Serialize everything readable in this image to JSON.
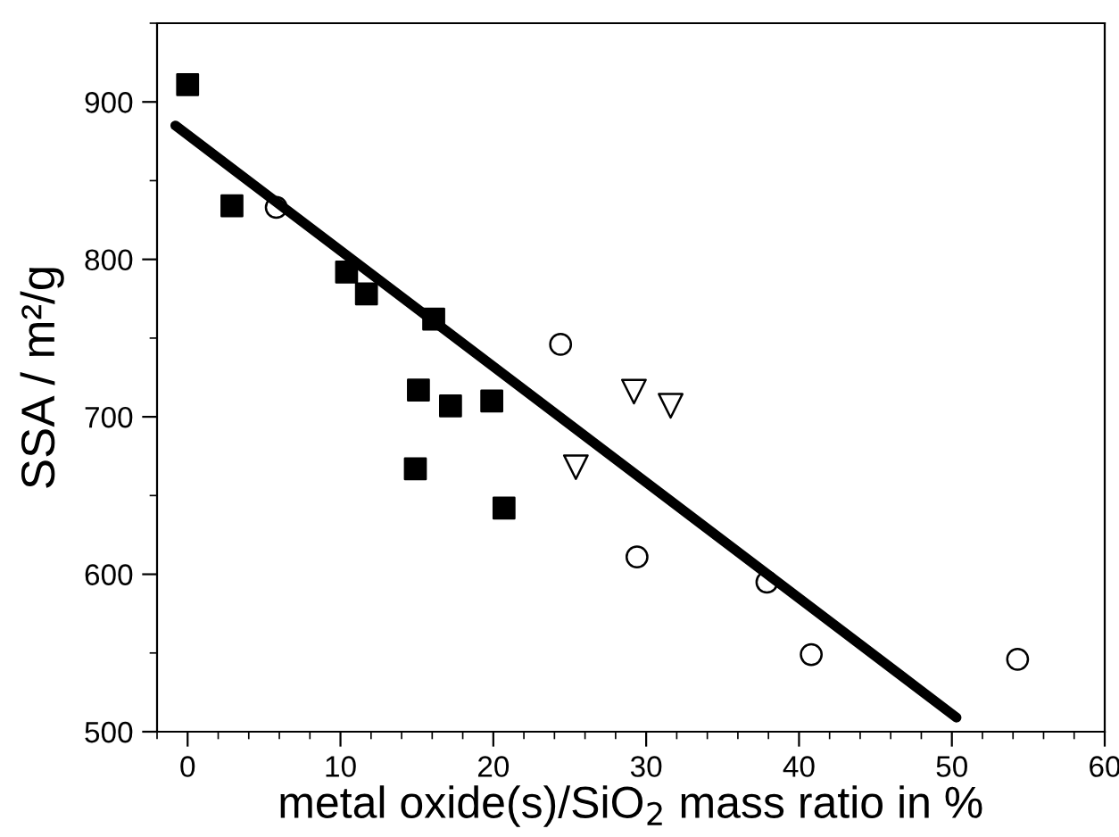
{
  "chart_data": {
    "type": "scatter",
    "xlabel": "metal oxide(s)/SiO$_{2}$ mass ratio in %",
    "ylabel": "SSA / m²/g",
    "xlim": [
      -2,
      60
    ],
    "xticks": [
      0,
      10,
      20,
      30,
      40,
      50,
      60
    ],
    "ylim": [
      500,
      950
    ],
    "yticks": [
      500,
      600,
      700,
      800,
      900
    ],
    "grid": false,
    "legend": false,
    "series": [
      {
        "color": "#000000",
        "marker": "square",
        "x": [
          0,
          2.9,
          10.4,
          11.7,
          16.1,
          15.1,
          17.2,
          19.9,
          14.9,
          20.7
        ],
        "values": [
          911,
          834,
          792,
          778,
          762,
          717,
          707,
          710,
          667,
          642
        ]
      },
      {
        "color": "#000000",
        "marker": "circle",
        "x": [
          5.8,
          24.4,
          29.4,
          37.9,
          40.8,
          54.3
        ],
        "values": [
          833,
          746,
          611,
          595,
          549,
          546
        ]
      },
      {
        "color": "#000000",
        "marker": "triangle",
        "x": [
          29.2,
          31.6,
          25.4
        ],
        "values": [
          716,
          707,
          668
        ]
      },
      {
        "type": "line",
        "color": "#000000",
        "line_style": "solid",
        "x": [
          -0.8,
          50.3
        ],
        "values": [
          885,
          509
        ]
      }
    ]
  }
}
